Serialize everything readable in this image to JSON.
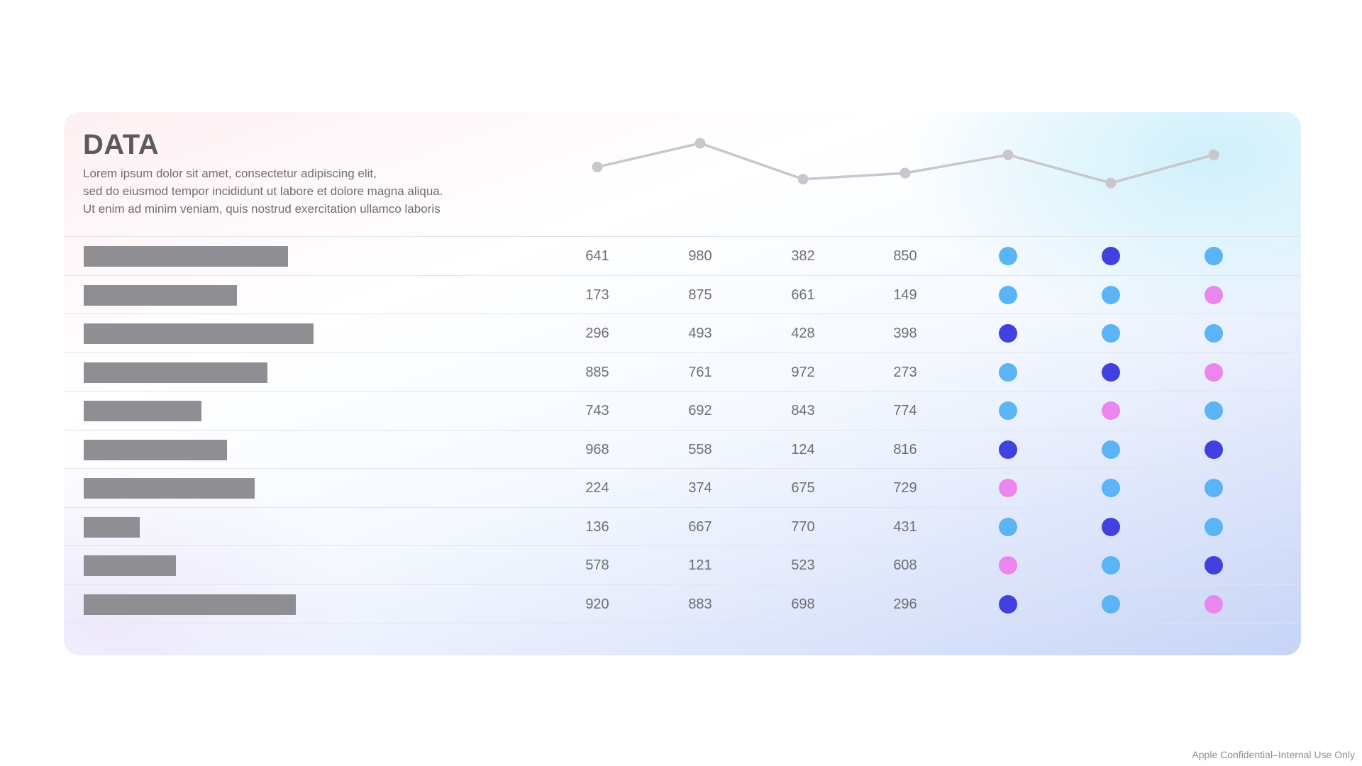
{
  "title": "DATA",
  "description": [
    "Lorem ipsum dolor sit amet, consectetur adipiscing elit,",
    "sed do eiusmod tempor incididunt ut labore et dolore magna aliqua.",
    "Ut enim ad minim veniam, quis nostrud exercitation ullamco laboris"
  ],
  "footer": "Apple Confidential–Internal Use Only",
  "colors": {
    "light-blue": "#5ab4f5",
    "indigo": "#4340e0",
    "pink": "#ea86ee",
    "bar": "#8e8e93",
    "line": "#c7c7cc"
  },
  "chart_data": [
    {
      "type": "line",
      "title": "",
      "xlabel": "",
      "ylabel": "",
      "values": [
        52,
        95,
        30,
        41,
        74,
        23,
        74
      ],
      "ylim": [
        0,
        100
      ],
      "grid": false,
      "axes": false
    },
    {
      "type": "table",
      "columns": [
        "bar",
        "c1",
        "c2",
        "c3",
        "c4",
        "s1",
        "s2",
        "s3"
      ],
      "rows": [
        {
          "bar": 0.8,
          "values": [
            641,
            980,
            382,
            850
          ],
          "status": [
            "light-blue",
            "indigo",
            "light-blue"
          ]
        },
        {
          "bar": 0.6,
          "values": [
            173,
            875,
            661,
            149
          ],
          "status": [
            "light-blue",
            "light-blue",
            "pink"
          ]
        },
        {
          "bar": 0.9,
          "values": [
            296,
            493,
            428,
            398
          ],
          "status": [
            "indigo",
            "light-blue",
            "light-blue"
          ]
        },
        {
          "bar": 0.72,
          "values": [
            885,
            761,
            972,
            273
          ],
          "status": [
            "light-blue",
            "indigo",
            "pink"
          ]
        },
        {
          "bar": 0.46,
          "values": [
            743,
            692,
            843,
            774
          ],
          "status": [
            "light-blue",
            "pink",
            "light-blue"
          ]
        },
        {
          "bar": 0.56,
          "values": [
            968,
            558,
            124,
            816
          ],
          "status": [
            "indigo",
            "light-blue",
            "indigo"
          ]
        },
        {
          "bar": 0.67,
          "values": [
            224,
            374,
            675,
            729
          ],
          "status": [
            "pink",
            "light-blue",
            "light-blue"
          ]
        },
        {
          "bar": 0.22,
          "values": [
            136,
            667,
            770,
            431
          ],
          "status": [
            "light-blue",
            "indigo",
            "light-blue"
          ]
        },
        {
          "bar": 0.36,
          "values": [
            578,
            121,
            523,
            608
          ],
          "status": [
            "pink",
            "light-blue",
            "indigo"
          ]
        },
        {
          "bar": 0.83,
          "values": [
            920,
            883,
            698,
            296
          ],
          "status": [
            "indigo",
            "light-blue",
            "pink"
          ]
        }
      ]
    }
  ]
}
